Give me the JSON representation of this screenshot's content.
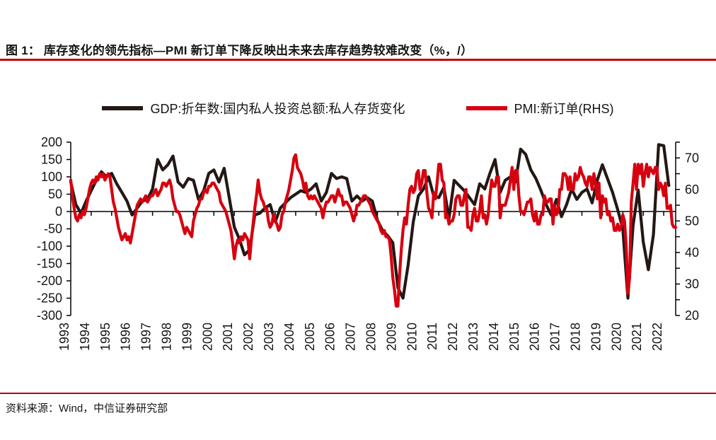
{
  "figure": {
    "title": "图 1：  库存变化的领先指标—PMI 新订单下降反映出未来去库存趋势较难改变（%，/）",
    "title_rule_color": "#C00000",
    "source_rule_color": "#AD0A0A",
    "source": "资料来源：Wind，中信证券研究部"
  },
  "legend": [
    {
      "label": "GDP:折年数:国内私人投资总额:私人存货变化",
      "color": "#231815"
    },
    {
      "label": "PMI:新订单(RHS)",
      "color": "#D7000F"
    }
  ],
  "chart_data": {
    "type": "line",
    "title": "库存变化的领先指标—PMI新订单下降反映出未来去库存趋势较难改变",
    "units": "%, /",
    "grid": false,
    "legend_position": "top",
    "x_categories": [
      "1993",
      "1994",
      "1995",
      "1996",
      "1997",
      "1998",
      "1999",
      "2000",
      "2001",
      "2002",
      "2003",
      "2004",
      "2005",
      "2006",
      "2007",
      "2008",
      "2009",
      "2010",
      "2011",
      "2012",
      "2013",
      "2014",
      "2015",
      "2016",
      "2017",
      "2018",
      "2019",
      "2020",
      "2021",
      "2022"
    ],
    "left_axis": {
      "min": -300,
      "max": 200,
      "tick_step": 50,
      "ticks": [
        200,
        150,
        100,
        50,
        0,
        -50,
        -100,
        -150,
        -200,
        -250,
        -300
      ]
    },
    "right_axis": {
      "min": 20,
      "max": 75,
      "minor_tick_step": 5,
      "labeled_ticks": [
        70,
        60,
        50,
        40,
        30,
        20
      ]
    },
    "series": [
      {
        "key": "gdp",
        "name": "GDP:折年数:国内私人投资总额:私人存货变化",
        "axis": "left",
        "color": "#231815",
        "frequency": "quarterly",
        "points_per_year": 4,
        "start": "1993Q1",
        "end": "2022Q2",
        "values": [
          85,
          20,
          -5,
          30,
          60,
          90,
          115,
          100,
          110,
          80,
          55,
          30,
          -10,
          10,
          30,
          35,
          65,
          150,
          120,
          135,
          160,
          85,
          70,
          95,
          90,
          35,
          60,
          110,
          120,
          85,
          125,
          40,
          -45,
          -80,
          -125,
          -110,
          -10,
          -5,
          10,
          20,
          -30,
          10,
          25,
          40,
          50,
          60,
          55,
          65,
          80,
          30,
          55,
          110,
          95,
          100,
          95,
          30,
          45,
          30,
          40,
          30,
          -25,
          -55,
          -70,
          -90,
          -220,
          -250,
          -155,
          -30,
          45,
          65,
          100,
          45,
          40,
          70,
          -20,
          90,
          75,
          60,
          40,
          20,
          80,
          65,
          110,
          150,
          55,
          90,
          100,
          85,
          180,
          165,
          120,
          95,
          60,
          20,
          -10,
          35,
          -15,
          20,
          65,
          35,
          55,
          65,
          25,
          90,
          135,
          95,
          55,
          5,
          -50,
          -250,
          -40,
          62,
          -88,
          -168,
          -66,
          193,
          190,
          75
        ]
      },
      {
        "key": "pmi",
        "name": "PMI:新订单(RHS)",
        "axis": "right",
        "color": "#D7000F",
        "frequency": "monthly",
        "points_per_year": 12,
        "start": "1993-01",
        "end": "2022-08",
        "values": [
          63,
          58,
          54,
          51,
          50,
          52,
          51,
          53,
          52,
          54,
          57,
          60,
          62,
          63,
          62,
          64,
          63,
          65,
          64,
          65,
          63,
          64,
          65,
          64,
          60,
          56,
          54,
          51,
          48,
          46,
          44,
          45,
          46,
          44,
          45,
          43,
          46,
          49,
          52,
          55,
          56,
          57,
          56,
          57,
          58,
          56,
          57,
          58,
          58,
          59,
          60,
          58,
          59,
          60,
          62,
          62,
          61,
          62,
          63,
          61,
          57,
          55,
          53,
          53,
          52,
          50,
          48,
          46,
          48,
          47,
          46,
          45,
          50,
          52,
          54,
          55,
          57,
          57,
          59,
          60,
          59,
          61,
          61,
          62,
          62,
          61,
          60,
          59,
          56,
          55,
          54,
          53,
          51,
          49,
          47,
          43,
          38,
          42,
          44,
          43,
          45,
          44,
          46,
          45,
          44,
          38,
          44,
          49,
          54,
          58,
          63,
          59,
          57,
          56,
          54,
          54,
          50,
          48,
          49,
          52,
          50,
          49,
          47,
          48,
          52,
          53,
          56,
          58,
          60,
          63,
          66,
          70,
          71,
          67,
          66,
          65,
          63,
          60,
          62,
          58,
          57,
          58,
          57,
          58,
          57,
          56,
          55,
          54,
          51,
          54,
          56,
          56,
          57,
          58,
          58,
          56,
          58,
          60,
          58,
          58,
          55,
          56,
          56,
          55,
          54,
          52,
          50,
          52,
          55,
          55,
          56,
          57,
          58,
          58,
          57,
          56,
          55,
          53,
          52,
          51,
          50,
          49,
          47,
          46,
          47,
          45,
          45,
          44,
          39,
          32,
          28,
          23,
          23,
          33,
          41,
          47,
          51,
          49,
          55,
          60,
          61,
          59,
          60,
          65,
          66,
          60,
          62,
          66,
          66,
          59,
          54,
          53,
          51,
          59,
          57,
          62,
          68,
          68,
          63,
          62,
          51,
          52,
          49,
          50,
          50,
          52,
          57,
          58,
          58,
          55,
          55,
          58,
          60,
          48,
          48,
          47,
          52,
          54,
          50,
          50,
          53,
          58,
          51,
          52,
          49,
          52,
          58,
          63,
          61,
          61,
          64,
          64,
          51,
          55,
          55,
          55,
          57,
          59,
          63,
          67,
          60,
          66,
          66,
          58,
          53,
          53,
          52,
          54,
          56,
          56,
          57,
          52,
          50,
          53,
          49,
          49,
          52,
          52,
          58,
          56,
          56,
          57,
          57,
          49,
          55,
          52,
          53,
          60,
          60,
          65,
          65,
          64,
          60,
          64,
          60,
          60,
          65,
          63,
          64,
          67,
          65,
          64,
          62,
          61,
          64,
          64,
          60,
          65,
          62,
          57,
          62,
          51,
          58,
          56,
          57,
          52,
          53,
          50,
          51,
          47,
          47,
          49,
          47,
          48,
          52,
          50,
          42,
          27,
          32,
          56,
          62,
          68,
          60,
          68,
          65,
          68,
          61,
          65,
          68,
          64,
          67,
          66,
          65,
          67,
          67,
          60,
          62,
          61,
          58,
          62,
          54,
          54,
          55,
          49,
          48,
          48
        ]
      }
    ]
  }
}
